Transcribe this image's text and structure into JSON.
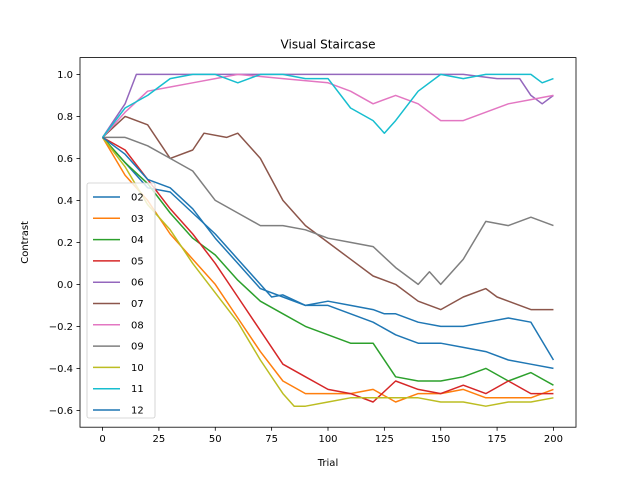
{
  "chart_data": {
    "type": "line",
    "title": "Visual Staircase",
    "xlabel": "Trial",
    "ylabel": "Contrast",
    "xlim": [
      -10,
      210
    ],
    "ylim": [
      -0.68,
      1.08
    ],
    "xticks": [
      0,
      25,
      50,
      75,
      100,
      125,
      150,
      175,
      200
    ],
    "yticks": [
      -0.6,
      -0.4,
      -0.2,
      0.0,
      0.2,
      0.4,
      0.6,
      0.8,
      1.0
    ],
    "ytick_labels": [
      "−0.6",
      "−0.4",
      "−0.2",
      "0.0",
      "0.2",
      "0.4",
      "0.6",
      "0.8",
      "1.0"
    ],
    "grid": false,
    "legend_position": "center-left",
    "series": [
      {
        "name": "02",
        "color": "#1f77b4",
        "x": [
          0,
          10,
          20,
          30,
          40,
          50,
          60,
          70,
          75,
          80,
          90,
          100,
          110,
          120,
          125,
          130,
          140,
          150,
          160,
          170,
          180,
          190,
          200
        ],
        "values": [
          0.7,
          0.58,
          0.46,
          0.44,
          0.34,
          0.24,
          0.12,
          0.0,
          -0.06,
          -0.05,
          -0.1,
          -0.08,
          -0.1,
          -0.12,
          -0.14,
          -0.14,
          -0.18,
          -0.2,
          -0.2,
          -0.18,
          -0.16,
          -0.18,
          -0.36
        ]
      },
      {
        "name": "03",
        "color": "#ff7f0e",
        "x": [
          0,
          10,
          20,
          30,
          40,
          50,
          60,
          70,
          80,
          90,
          100,
          110,
          120,
          130,
          140,
          150,
          160,
          170,
          180,
          190,
          200
        ],
        "values": [
          0.7,
          0.52,
          0.4,
          0.24,
          0.12,
          0.0,
          -0.16,
          -0.32,
          -0.46,
          -0.52,
          -0.52,
          -0.52,
          -0.5,
          -0.56,
          -0.52,
          -0.52,
          -0.5,
          -0.54,
          -0.54,
          -0.54,
          -0.5
        ]
      },
      {
        "name": "04",
        "color": "#2ca02c",
        "x": [
          0,
          10,
          20,
          30,
          40,
          50,
          60,
          70,
          80,
          90,
          100,
          110,
          120,
          130,
          140,
          150,
          160,
          170,
          180,
          190,
          200
        ],
        "values": [
          0.7,
          0.58,
          0.48,
          0.34,
          0.22,
          0.14,
          0.02,
          -0.08,
          -0.14,
          -0.2,
          -0.24,
          -0.28,
          -0.28,
          -0.44,
          -0.46,
          -0.46,
          -0.44,
          -0.4,
          -0.46,
          -0.42,
          -0.48
        ]
      },
      {
        "name": "05",
        "color": "#d62728",
        "x": [
          0,
          10,
          20,
          30,
          40,
          50,
          60,
          70,
          80,
          90,
          100,
          110,
          120,
          130,
          140,
          150,
          160,
          170,
          180,
          190,
          200
        ],
        "values": [
          0.7,
          0.64,
          0.5,
          0.36,
          0.24,
          0.1,
          -0.06,
          -0.22,
          -0.38,
          -0.44,
          -0.5,
          -0.52,
          -0.56,
          -0.46,
          -0.5,
          -0.52,
          -0.48,
          -0.52,
          -0.46,
          -0.52,
          -0.52
        ]
      },
      {
        "name": "06",
        "color": "#9467bd",
        "x": [
          0,
          5,
          10,
          15,
          20,
          40,
          60,
          80,
          100,
          120,
          140,
          160,
          175,
          185,
          190,
          195,
          200
        ],
        "values": [
          0.7,
          0.78,
          0.86,
          1.0,
          1.0,
          1.0,
          1.0,
          1.0,
          1.0,
          1.0,
          1.0,
          1.0,
          0.98,
          0.98,
          0.9,
          0.86,
          0.9
        ]
      },
      {
        "name": "07",
        "color": "#8c564b",
        "x": [
          0,
          10,
          20,
          30,
          40,
          45,
          55,
          60,
          70,
          80,
          90,
          100,
          110,
          120,
          130,
          140,
          150,
          160,
          170,
          175,
          180,
          190,
          200
        ],
        "values": [
          0.7,
          0.8,
          0.76,
          0.6,
          0.64,
          0.72,
          0.7,
          0.72,
          0.6,
          0.4,
          0.28,
          0.2,
          0.12,
          0.04,
          0.0,
          -0.08,
          -0.12,
          -0.06,
          -0.02,
          -0.06,
          -0.08,
          -0.12,
          -0.12
        ]
      },
      {
        "name": "08",
        "color": "#e377c2",
        "x": [
          0,
          10,
          20,
          30,
          40,
          50,
          60,
          80,
          100,
          110,
          120,
          130,
          140,
          150,
          160,
          170,
          180,
          190,
          200
        ],
        "values": [
          0.7,
          0.82,
          0.92,
          0.94,
          0.96,
          0.98,
          1.0,
          0.98,
          0.96,
          0.92,
          0.86,
          0.9,
          0.86,
          0.78,
          0.78,
          0.82,
          0.86,
          0.88,
          0.9
        ]
      },
      {
        "name": "09",
        "color": "#7f7f7f",
        "x": [
          0,
          10,
          20,
          30,
          40,
          50,
          60,
          70,
          80,
          90,
          100,
          110,
          120,
          130,
          140,
          145,
          150,
          160,
          170,
          180,
          190,
          200
        ],
        "values": [
          0.7,
          0.7,
          0.66,
          0.6,
          0.54,
          0.4,
          0.34,
          0.28,
          0.28,
          0.26,
          0.22,
          0.2,
          0.18,
          0.08,
          0.0,
          0.06,
          0.0,
          0.12,
          0.3,
          0.28,
          0.32,
          0.28
        ]
      },
      {
        "name": "10",
        "color": "#bcbd22",
        "x": [
          0,
          10,
          20,
          30,
          40,
          50,
          60,
          70,
          80,
          85,
          90,
          100,
          110,
          120,
          130,
          140,
          150,
          160,
          170,
          180,
          190,
          200
        ],
        "values": [
          0.7,
          0.56,
          0.38,
          0.26,
          0.1,
          -0.04,
          -0.18,
          -0.36,
          -0.52,
          -0.58,
          -0.58,
          -0.56,
          -0.54,
          -0.54,
          -0.54,
          -0.54,
          -0.56,
          -0.56,
          -0.58,
          -0.56,
          -0.56,
          -0.54
        ]
      },
      {
        "name": "11",
        "color": "#17becf",
        "x": [
          0,
          10,
          20,
          30,
          40,
          50,
          60,
          70,
          80,
          90,
          100,
          110,
          120,
          125,
          130,
          140,
          150,
          160,
          170,
          180,
          190,
          195,
          200
        ],
        "values": [
          0.7,
          0.84,
          0.9,
          0.98,
          1.0,
          1.0,
          0.96,
          1.0,
          1.0,
          0.98,
          0.98,
          0.84,
          0.78,
          0.72,
          0.78,
          0.92,
          1.0,
          0.98,
          1.0,
          1.0,
          1.0,
          0.96,
          0.98
        ]
      },
      {
        "name": "12",
        "color": "#1f77b4",
        "x": [
          0,
          10,
          20,
          30,
          40,
          50,
          60,
          70,
          80,
          90,
          100,
          110,
          120,
          130,
          140,
          150,
          160,
          170,
          180,
          190,
          200
        ],
        "values": [
          0.7,
          0.62,
          0.5,
          0.46,
          0.36,
          0.22,
          0.1,
          -0.02,
          -0.06,
          -0.1,
          -0.1,
          -0.14,
          -0.18,
          -0.24,
          -0.28,
          -0.28,
          -0.3,
          -0.32,
          -0.36,
          -0.38,
          -0.4
        ]
      }
    ]
  }
}
